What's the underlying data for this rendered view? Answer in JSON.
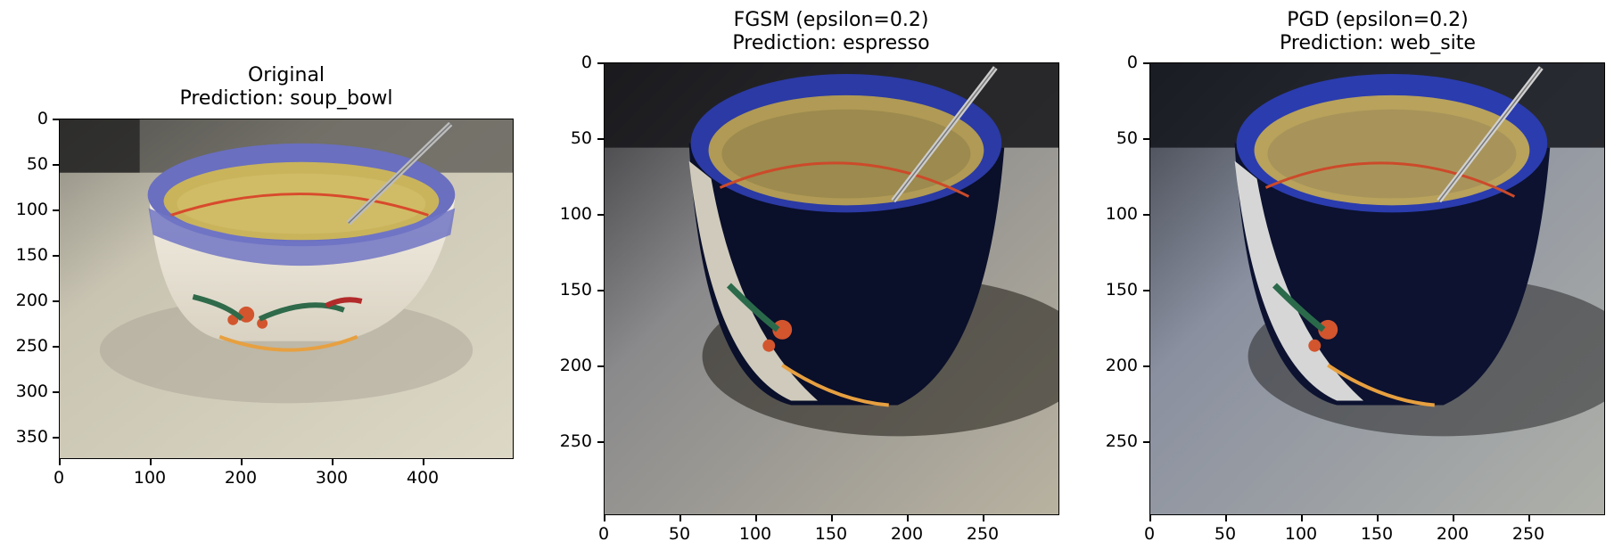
{
  "panels": [
    {
      "title_line1": "Original",
      "title_line2": "Prediction: soup_bowl",
      "yticks": [
        "0",
        "50",
        "100",
        "150",
        "200",
        "250",
        "300",
        "350"
      ],
      "xticks": [
        "0",
        "100",
        "200",
        "300",
        "400"
      ]
    },
    {
      "title_line1": "FGSM (epsilon=0.2)",
      "title_line2": "Prediction: espresso",
      "yticks": [
        "0",
        "50",
        "100",
        "150",
        "200",
        "250"
      ],
      "xticks": [
        "0",
        "50",
        "100",
        "150",
        "200",
        "250"
      ]
    },
    {
      "title_line1": "PGD (epsilon=0.2)",
      "title_line2": "Prediction: web_site",
      "yticks": [
        "0",
        "50",
        "100",
        "150",
        "200",
        "250"
      ],
      "xticks": [
        "0",
        "50",
        "100",
        "150",
        "200",
        "250"
      ]
    }
  ],
  "image_description_colors": {
    "table": "#cfcab8",
    "bowl_rim": "#5a62b8",
    "soup": "#c9b25a",
    "dark_shadow": "#1a1a22"
  }
}
